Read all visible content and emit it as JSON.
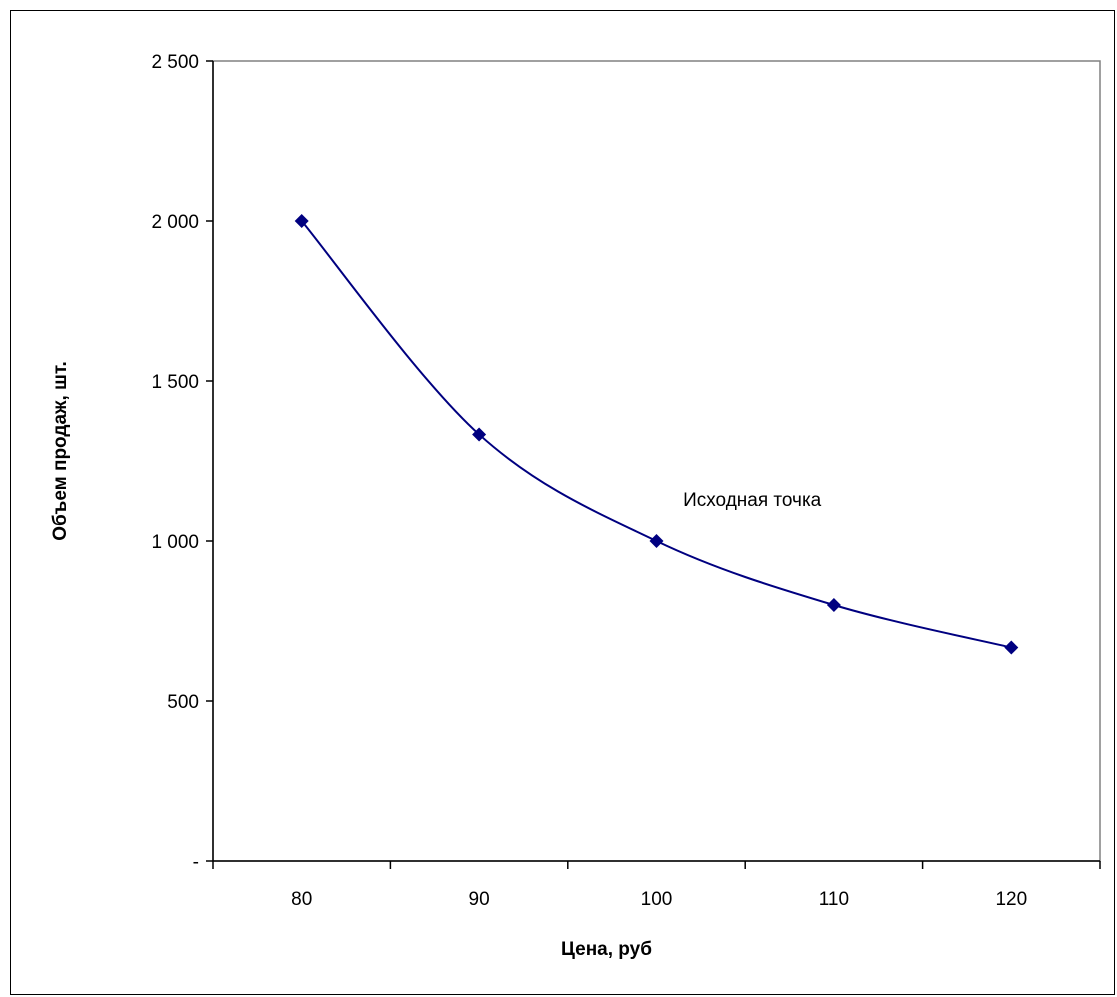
{
  "chart_data": {
    "type": "line",
    "title": "",
    "xlabel": "Цена, руб",
    "ylabel": "Объем продаж, шт.",
    "xlim": [
      75,
      125
    ],
    "ylim": [
      0,
      2500
    ],
    "x_ticks": [
      "80",
      "90",
      "100",
      "110",
      "120"
    ],
    "x_tick_values": [
      80,
      90,
      100,
      110,
      120
    ],
    "y_ticks": [
      "-",
      "500",
      "1 000",
      "1 500",
      "2 000",
      "2 500"
    ],
    "y_tick_values": [
      0,
      500,
      1000,
      1500,
      2000,
      2500
    ],
    "series": [
      {
        "x": [
          80,
          90,
          100,
          110,
          120
        ],
        "y": [
          2000,
          1333,
          1000,
          800,
          667
        ]
      }
    ],
    "annotations": [
      {
        "text": "Исходная точка",
        "x": 101.5,
        "y": 1110
      }
    ],
    "grid": false,
    "colors": {
      "series": "#000080",
      "axis": "#000000",
      "plot_border": "#808080"
    }
  }
}
